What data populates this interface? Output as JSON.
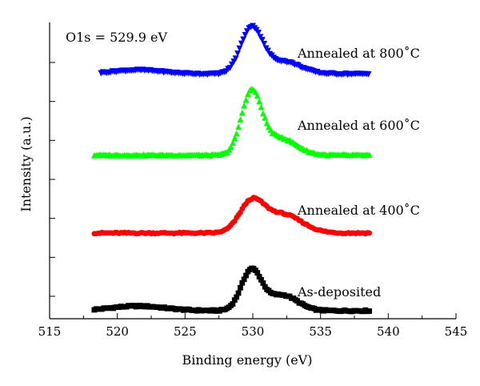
{
  "chart_data": {
    "type": "scatter",
    "xlabel": "Binding energy (eV)",
    "ylabel": "Intensity (a.u.)",
    "xlim": [
      515,
      545
    ],
    "xticks": [
      "515",
      "520",
      "525",
      "530",
      "535",
      "540",
      "545"
    ],
    "y_tick_count": 7,
    "grid": false,
    "annotation": "O1s = 529.9 eV",
    "series": [
      {
        "name": "As-deposited",
        "marker": "square",
        "color": "#000000",
        "baseline": 0.0,
        "x_range": [
          518.3,
          538.6
        ],
        "peaks": [
          {
            "center": 529.9,
            "height": 0.52,
            "width": 0.75
          },
          {
            "center": 532.2,
            "height": 0.2,
            "width": 1.1
          },
          {
            "center": 521.5,
            "height": 0.06,
            "width": 2.0
          }
        ]
      },
      {
        "name": "Annealed at 400˚C",
        "marker": "circle",
        "color": "#ff0000",
        "baseline": 1.0,
        "x_range": [
          518.3,
          538.6
        ],
        "peaks": [
          {
            "center": 529.9,
            "height": 0.38,
            "width": 0.9
          },
          {
            "center": 532.2,
            "height": 0.24,
            "width": 1.4
          }
        ]
      },
      {
        "name": "Annealed at 600˚C",
        "marker": "triangle-up",
        "color": "#00ff00",
        "baseline": 2.0,
        "x_range": [
          518.3,
          538.6
        ],
        "peaks": [
          {
            "center": 529.9,
            "height": 0.8,
            "width": 0.75
          },
          {
            "center": 532.0,
            "height": 0.22,
            "width": 1.2
          }
        ]
      },
      {
        "name": "Annealed at 800˚C",
        "marker": "triangle-down",
        "color": "#0000ff",
        "baseline": 3.05,
        "x_range": [
          518.8,
          538.6
        ],
        "peaks": [
          {
            "center": 529.9,
            "height": 0.58,
            "width": 0.8
          },
          {
            "center": 532.2,
            "height": 0.16,
            "width": 1.3
          },
          {
            "center": 521.5,
            "height": 0.05,
            "width": 1.8
          }
        ]
      }
    ]
  }
}
